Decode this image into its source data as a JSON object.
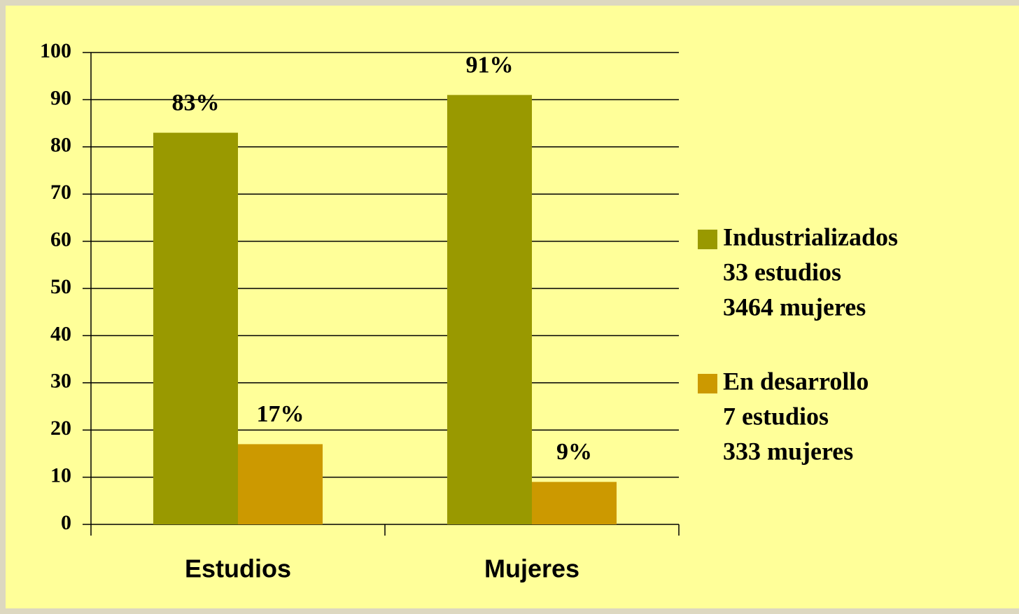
{
  "chart_data": {
    "type": "bar",
    "categories": [
      "Estudios",
      "Mujeres"
    ],
    "series": [
      {
        "name": "Industrializados",
        "legend_details": [
          "33 estudios",
          "3464 mujeres"
        ],
        "color": "#999900",
        "values": [
          83,
          91
        ],
        "value_labels": [
          "83%",
          "91%"
        ]
      },
      {
        "name": "En desarrollo",
        "legend_details": [
          "7 estudios",
          "333 mujeres"
        ],
        "color": "#cc9900",
        "values": [
          17,
          9
        ],
        "value_labels": [
          "17%",
          "9%"
        ]
      }
    ],
    "ylim": [
      0,
      100
    ],
    "yticks": [
      0,
      10,
      20,
      30,
      40,
      50,
      60,
      70,
      80,
      90,
      100
    ],
    "grid": true,
    "legend": "right"
  }
}
